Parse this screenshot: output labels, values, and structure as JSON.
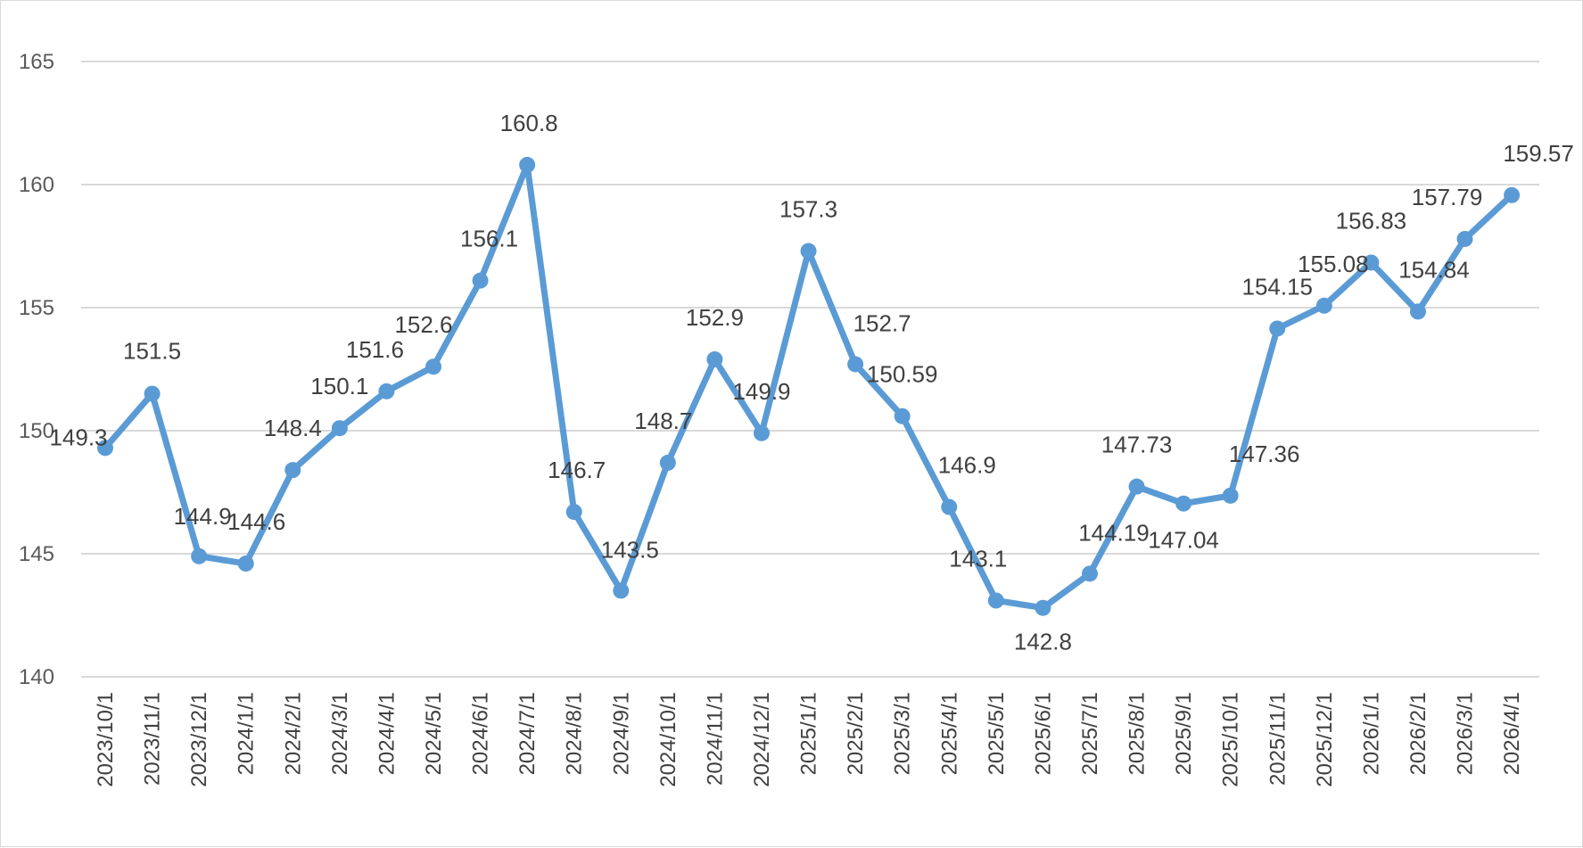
{
  "chart_data": {
    "type": "line",
    "title": "",
    "xlabel": "",
    "ylabel": "",
    "ylim": [
      140,
      165
    ],
    "yticks": [
      140,
      145,
      150,
      155,
      160,
      165
    ],
    "grid": true,
    "legend": "none",
    "line_color": "#5b9bd5",
    "categories": [
      "2023/10/1",
      "2023/11/1",
      "2023/12/1",
      "2024/1/1",
      "2024/2/1",
      "2024/3/1",
      "2024/4/1",
      "2024/5/1",
      "2024/6/1",
      "2024/7/1",
      "2024/8/1",
      "2024/9/1",
      "2024/10/1",
      "2024/11/1",
      "2024/12/1",
      "2025/1/1",
      "2025/2/1",
      "2025/3/1",
      "2025/4/1",
      "2025/5/1",
      "2025/6/1",
      "2025/7/1",
      "2025/8/1",
      "2025/9/1",
      "2025/10/1",
      "2025/11/1",
      "2025/12/1",
      "2026/1/1",
      "2026/2/1",
      "2026/3/1",
      "2026/4/1"
    ],
    "values": [
      149.3,
      151.5,
      144.9,
      144.6,
      148.4,
      150.1,
      151.6,
      152.6,
      156.1,
      160.8,
      146.7,
      143.5,
      148.7,
      152.9,
      149.9,
      157.3,
      152.7,
      150.59,
      146.9,
      143.1,
      142.8,
      144.19,
      147.73,
      147.04,
      147.36,
      154.15,
      155.08,
      156.83,
      154.84,
      157.79,
      159.57
    ],
    "labels": [
      "149.3",
      "151.5",
      "144.9",
      "144.6",
      "148.4",
      "150.1",
      "151.6",
      "152.6",
      "156.1",
      "160.8",
      "146.7",
      "143.5",
      "148.7",
      "152.9",
      "149.9",
      "157.3",
      "152.7",
      "150.59",
      "146.9",
      "143.1",
      "142.8",
      "144.19",
      "147.73",
      "147.04",
      "147.36",
      "154.15",
      "155.08",
      "156.83",
      "154.84",
      "157.79",
      "159.57"
    ]
  }
}
